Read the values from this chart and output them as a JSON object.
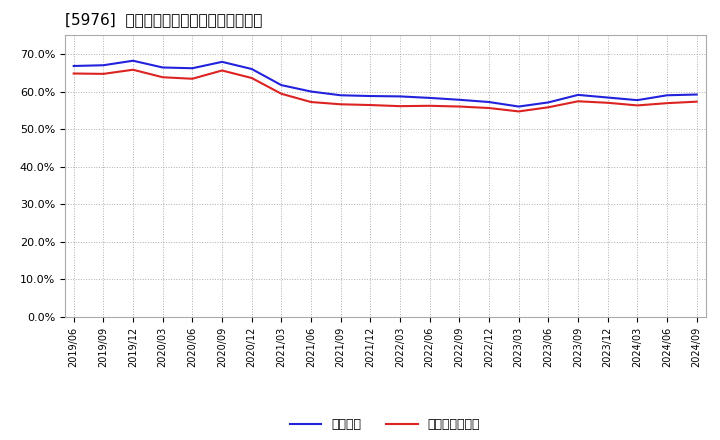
{
  "title": "[5976]  固定比率、固定長期適合率の推移",
  "line1_label": "固定比率",
  "line2_label": "固定長期適合率",
  "line1_color": "#2222dd",
  "line2_color": "#dd2222",
  "background_color": "#ffffff",
  "grid_color": "#999999",
  "ylim": [
    0.0,
    0.75
  ],
  "yticks": [
    0.0,
    0.1,
    0.2,
    0.3,
    0.4,
    0.5,
    0.6,
    0.7
  ],
  "dates": [
    "2019/06",
    "2019/09",
    "2019/12",
    "2020/03",
    "2020/06",
    "2020/09",
    "2020/12",
    "2021/03",
    "2021/06",
    "2021/09",
    "2021/12",
    "2022/03",
    "2022/06",
    "2022/09",
    "2022/12",
    "2023/03",
    "2023/06",
    "2023/09",
    "2023/12",
    "2024/03",
    "2024/06",
    "2024/09"
  ],
  "line1_values": [
    0.668,
    0.67,
    0.682,
    0.664,
    0.662,
    0.679,
    0.66,
    0.617,
    0.6,
    0.59,
    0.588,
    0.587,
    0.583,
    0.578,
    0.572,
    0.56,
    0.571,
    0.591,
    0.584,
    0.577,
    0.59,
    0.592
  ],
  "line2_values": [
    0.648,
    0.647,
    0.658,
    0.638,
    0.634,
    0.656,
    0.636,
    0.594,
    0.572,
    0.566,
    0.564,
    0.561,
    0.562,
    0.56,
    0.556,
    0.547,
    0.558,
    0.574,
    0.57,
    0.563,
    0.569,
    0.573
  ]
}
